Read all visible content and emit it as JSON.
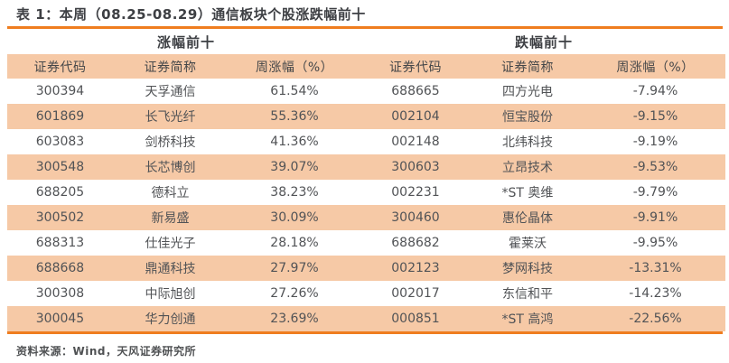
{
  "title": "表 1：本周（08.25-08.29）通信板块个股涨跌幅前十",
  "source": "资料来源：Wind，天风证券研究所",
  "colors": {
    "accent_orange": "#EF7D1F",
    "stripe_peach": "#F6C9A6",
    "title_text": "#3E4044",
    "cell_text": "#515356"
  },
  "gainers": {
    "section_label": "涨幅前十",
    "columns": [
      "证券代码",
      "证券简称",
      "周涨幅（%）"
    ],
    "rows": [
      {
        "code": "300394",
        "name": "天孚通信",
        "change": "61.54%"
      },
      {
        "code": "601869",
        "name": "长飞光纤",
        "change": "55.36%"
      },
      {
        "code": "603083",
        "name": "剑桥科技",
        "change": "41.36%"
      },
      {
        "code": "300548",
        "name": "长芯博创",
        "change": "39.07%"
      },
      {
        "code": "688205",
        "name": "德科立",
        "change": "38.23%"
      },
      {
        "code": "300502",
        "name": "新易盛",
        "change": "30.09%"
      },
      {
        "code": "688313",
        "name": "仕佳光子",
        "change": "28.18%"
      },
      {
        "code": "688668",
        "name": "鼎通科技",
        "change": "27.97%"
      },
      {
        "code": "300308",
        "name": "中际旭创",
        "change": "27.26%"
      },
      {
        "code": "300045",
        "name": "华力创通",
        "change": "23.69%"
      }
    ]
  },
  "losers": {
    "section_label": "跌幅前十",
    "columns": [
      "证券代码",
      "证券简称",
      "周涨幅（%）"
    ],
    "rows": [
      {
        "code": "688665",
        "name": "四方光电",
        "change": "-7.94%"
      },
      {
        "code": "002104",
        "name": "恒宝股份",
        "change": "-9.15%"
      },
      {
        "code": "002148",
        "name": "北纬科技",
        "change": "-9.19%"
      },
      {
        "code": "300603",
        "name": "立昂技术",
        "change": "-9.53%"
      },
      {
        "code": "002231",
        "name": "*ST 奥维",
        "change": "-9.79%"
      },
      {
        "code": "300460",
        "name": "惠伦晶体",
        "change": "-9.91%"
      },
      {
        "code": "688682",
        "name": "霍莱沃",
        "change": "-9.95%"
      },
      {
        "code": "002123",
        "name": "梦网科技",
        "change": "-13.31%"
      },
      {
        "code": "002017",
        "name": "东信和平",
        "change": "-14.23%"
      },
      {
        "code": "000851",
        "name": "*ST 高鸿",
        "change": "-22.56%"
      }
    ]
  }
}
